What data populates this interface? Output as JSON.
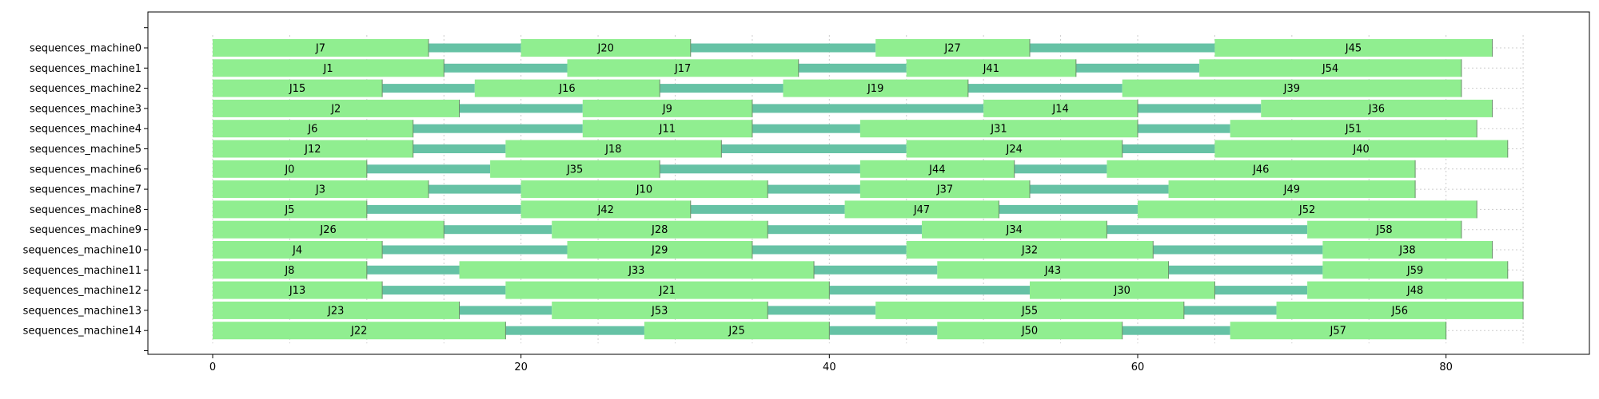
{
  "chart_data": {
    "type": "gantt",
    "title": "",
    "xlabel": "",
    "ylabel": "",
    "xlim": [
      -4.2,
      89.3
    ],
    "xticks": [
      0,
      20,
      40,
      60,
      80
    ],
    "grid": {
      "vertical_every": 5,
      "style": "dotted"
    },
    "colors": {
      "job_bar": "#90ee90",
      "job_edge": "#6b8e6b",
      "connector": "#66c2a5",
      "grid": "#cccccc"
    },
    "rows": [
      {
        "name": "sequences_machine0",
        "jobs": [
          {
            "label": "J7",
            "start": 0,
            "end": 14
          },
          {
            "label": "J20",
            "start": 20,
            "end": 31
          },
          {
            "label": "J27",
            "start": 43,
            "end": 53
          },
          {
            "label": "J45",
            "start": 65,
            "end": 83
          }
        ]
      },
      {
        "name": "sequences_machine1",
        "jobs": [
          {
            "label": "J1",
            "start": 0,
            "end": 15
          },
          {
            "label": "J17",
            "start": 23,
            "end": 38
          },
          {
            "label": "J41",
            "start": 45,
            "end": 56
          },
          {
            "label": "J54",
            "start": 64,
            "end": 81
          }
        ]
      },
      {
        "name": "sequences_machine2",
        "jobs": [
          {
            "label": "J15",
            "start": 0,
            "end": 11
          },
          {
            "label": "J16",
            "start": 17,
            "end": 29
          },
          {
            "label": "J19",
            "start": 37,
            "end": 49
          },
          {
            "label": "J39",
            "start": 59,
            "end": 81
          }
        ]
      },
      {
        "name": "sequences_machine3",
        "jobs": [
          {
            "label": "J2",
            "start": 0,
            "end": 16
          },
          {
            "label": "J9",
            "start": 24,
            "end": 35
          },
          {
            "label": "J14",
            "start": 50,
            "end": 60
          },
          {
            "label": "J36",
            "start": 68,
            "end": 83
          }
        ]
      },
      {
        "name": "sequences_machine4",
        "jobs": [
          {
            "label": "J6",
            "start": 0,
            "end": 13
          },
          {
            "label": "J11",
            "start": 24,
            "end": 35
          },
          {
            "label": "J31",
            "start": 42,
            "end": 60
          },
          {
            "label": "J51",
            "start": 66,
            "end": 82
          }
        ]
      },
      {
        "name": "sequences_machine5",
        "jobs": [
          {
            "label": "J12",
            "start": 0,
            "end": 13
          },
          {
            "label": "J18",
            "start": 19,
            "end": 33
          },
          {
            "label": "J24",
            "start": 45,
            "end": 59
          },
          {
            "label": "J40",
            "start": 65,
            "end": 84
          }
        ]
      },
      {
        "name": "sequences_machine6",
        "jobs": [
          {
            "label": "J0",
            "start": 0,
            "end": 10
          },
          {
            "label": "J35",
            "start": 18,
            "end": 29
          },
          {
            "label": "J44",
            "start": 42,
            "end": 52
          },
          {
            "label": "J46",
            "start": 58,
            "end": 78
          }
        ]
      },
      {
        "name": "sequences_machine7",
        "jobs": [
          {
            "label": "J3",
            "start": 0,
            "end": 14
          },
          {
            "label": "J10",
            "start": 20,
            "end": 36
          },
          {
            "label": "J37",
            "start": 42,
            "end": 53
          },
          {
            "label": "J49",
            "start": 62,
            "end": 78
          }
        ]
      },
      {
        "name": "sequences_machine8",
        "jobs": [
          {
            "label": "J5",
            "start": 0,
            "end": 10
          },
          {
            "label": "J42",
            "start": 20,
            "end": 31
          },
          {
            "label": "J47",
            "start": 41,
            "end": 51
          },
          {
            "label": "J52",
            "start": 60,
            "end": 82
          }
        ]
      },
      {
        "name": "sequences_machine9",
        "jobs": [
          {
            "label": "J26",
            "start": 0,
            "end": 15
          },
          {
            "label": "J28",
            "start": 22,
            "end": 36
          },
          {
            "label": "J34",
            "start": 46,
            "end": 58
          },
          {
            "label": "J58",
            "start": 71,
            "end": 81
          }
        ]
      },
      {
        "name": "sequences_machine10",
        "jobs": [
          {
            "label": "J4",
            "start": 0,
            "end": 11
          },
          {
            "label": "J29",
            "start": 23,
            "end": 35
          },
          {
            "label": "J32",
            "start": 45,
            "end": 61
          },
          {
            "label": "J38",
            "start": 72,
            "end": 83
          }
        ]
      },
      {
        "name": "sequences_machine11",
        "jobs": [
          {
            "label": "J8",
            "start": 0,
            "end": 10
          },
          {
            "label": "J33",
            "start": 16,
            "end": 39
          },
          {
            "label": "J43",
            "start": 47,
            "end": 62
          },
          {
            "label": "J59",
            "start": 72,
            "end": 84
          }
        ]
      },
      {
        "name": "sequences_machine12",
        "jobs": [
          {
            "label": "J13",
            "start": 0,
            "end": 11
          },
          {
            "label": "J21",
            "start": 19,
            "end": 40
          },
          {
            "label": "J30",
            "start": 53,
            "end": 65
          },
          {
            "label": "J48",
            "start": 71,
            "end": 85
          }
        ]
      },
      {
        "name": "sequences_machine13",
        "jobs": [
          {
            "label": "J23",
            "start": 0,
            "end": 16
          },
          {
            "label": "J53",
            "start": 22,
            "end": 36
          },
          {
            "label": "J55",
            "start": 43,
            "end": 63
          },
          {
            "label": "J56",
            "start": 69,
            "end": 85
          }
        ]
      },
      {
        "name": "sequences_machine14",
        "jobs": [
          {
            "label": "J22",
            "start": 0,
            "end": 19
          },
          {
            "label": "J25",
            "start": 28,
            "end": 40
          },
          {
            "label": "J50",
            "start": 47,
            "end": 59
          },
          {
            "label": "J57",
            "start": 66,
            "end": 80
          }
        ]
      }
    ]
  }
}
